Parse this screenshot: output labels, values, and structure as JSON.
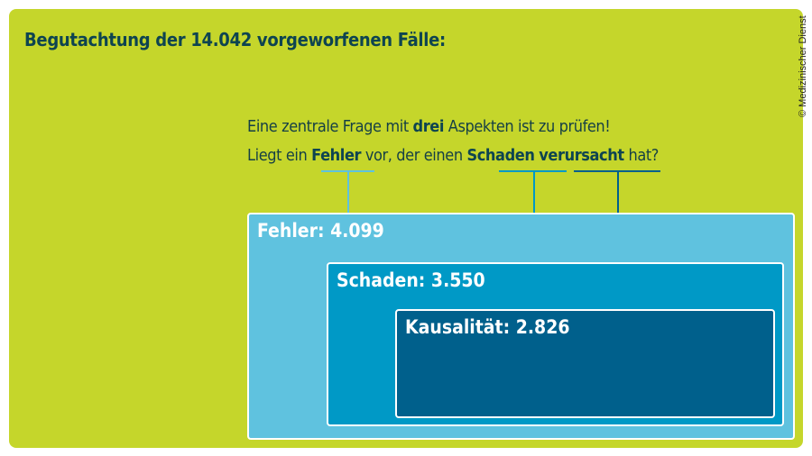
{
  "title": "Begutachtung der 14.042 vorgeworfenen Fälle:",
  "question": {
    "line1": {
      "pre": "Eine zentrale Frage mit ",
      "bold": "drei",
      "post": " Aspekten ist zu prüfen!"
    },
    "line2": {
      "p1": "Liegt ein ",
      "b1": "Fehler",
      "p2": " vor, der einen ",
      "b2": "Schaden",
      "p3": " ",
      "b3": "verursacht",
      "p4": " hat?"
    }
  },
  "boxes": [
    {
      "label": "Fehler: 4.099",
      "value": 4099,
      "color": "#5fc2df"
    },
    {
      "label": "Schaden: 3.550",
      "value": 3550,
      "color": "#0099c6"
    },
    {
      "label": "Kausalität: 2.826",
      "value": 2826,
      "color": "#00608c"
    }
  ],
  "background_color": "#c5d62b",
  "credit": "© Medizinischer Dienst"
}
